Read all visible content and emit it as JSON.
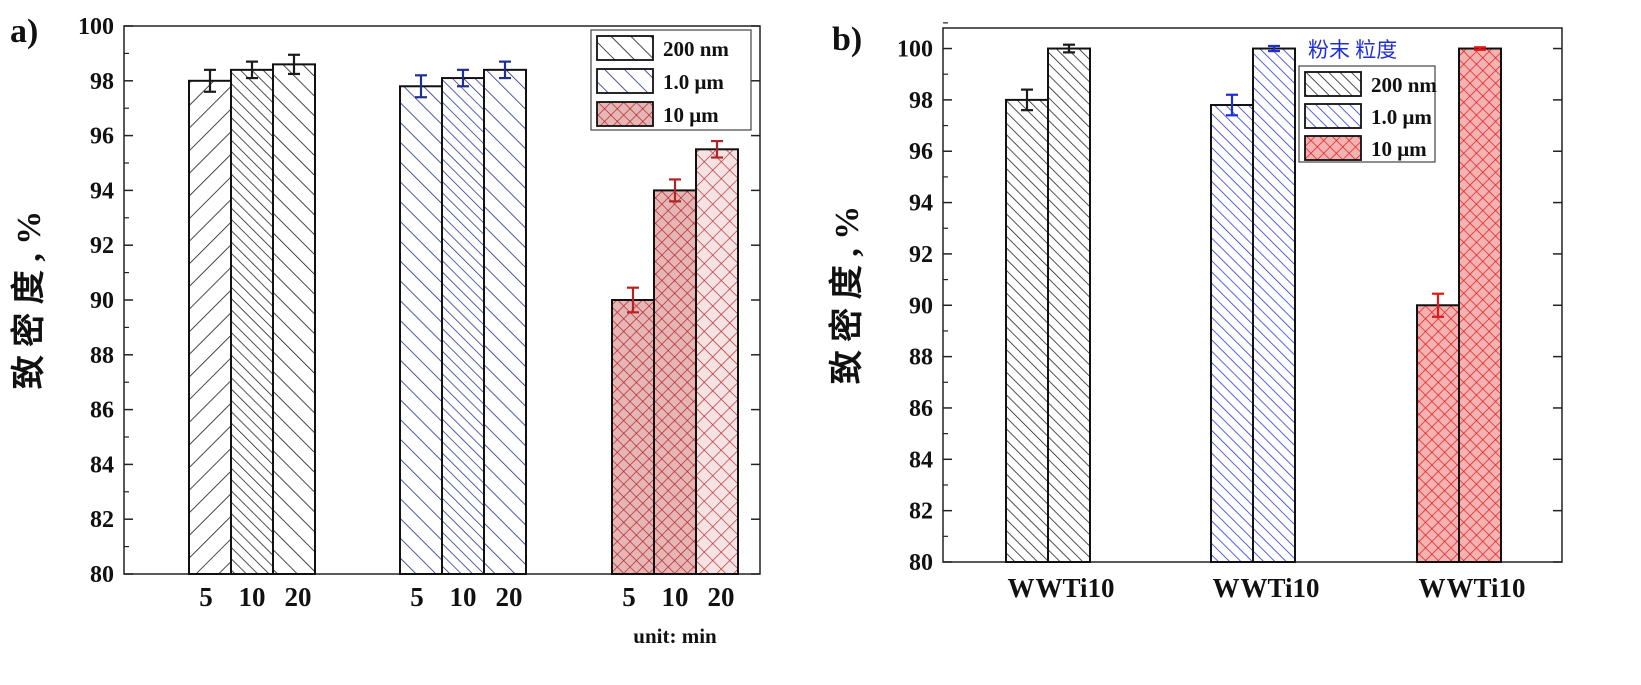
{
  "figure": {
    "panels": [
      {
        "id": "a",
        "label": "a)"
      },
      {
        "id": "b",
        "label": "b)"
      }
    ]
  },
  "colors": {
    "black": "#1a1a1a",
    "blue": "#1f2f8f",
    "red": "#b32424",
    "b_blue": "#1f2fd6",
    "b_red": "#e01818",
    "legend_title": "#1f2fd6"
  },
  "chart_data": [
    {
      "type": "bar",
      "panel": "a)",
      "ylabel": "致 密 度 , %",
      "ylim": [
        80,
        100
      ],
      "yticks": [
        80,
        82,
        84,
        86,
        88,
        90,
        92,
        94,
        96,
        98,
        100
      ],
      "groups": [
        {
          "series": "200 nm",
          "color": "black",
          "categories": [
            "5",
            "10",
            "20"
          ],
          "values": [
            98.0,
            98.4,
            98.6
          ],
          "errors": [
            0.4,
            0.3,
            0.35
          ],
          "patterns": [
            "fwd-wide",
            "back-dense",
            "back-wide"
          ]
        },
        {
          "series": "1.0 μm",
          "color": "blue",
          "categories": [
            "5",
            "10",
            "20"
          ],
          "values": [
            97.8,
            98.1,
            98.4
          ],
          "errors": [
            0.4,
            0.3,
            0.3
          ],
          "patterns": [
            "back-wide",
            "back-dense",
            "back-wide"
          ]
        },
        {
          "series": "10 μm",
          "color": "red",
          "categories": [
            "5",
            "10",
            "20"
          ],
          "values": [
            90.0,
            94.0,
            95.5
          ],
          "errors": [
            0.45,
            0.4,
            0.3
          ],
          "patterns": [
            "cross-dense",
            "cross-dense",
            "cross-wide-light"
          ]
        }
      ],
      "legend": [
        {
          "name": "200 nm",
          "color": "black",
          "pattern": "back-wide"
        },
        {
          "name": "1.0 μm",
          "color": "blue",
          "pattern": "back-wide"
        },
        {
          "name": "10 μm",
          "color": "red",
          "pattern": "cross-dense"
        }
      ],
      "legend_placement": "top-right",
      "annotation": "unit: min"
    },
    {
      "type": "bar",
      "panel": "b)",
      "ylabel": "致 密 度 , %",
      "ylim": [
        80,
        100.8
      ],
      "yticks": [
        80,
        82,
        84,
        86,
        88,
        90,
        92,
        94,
        96,
        98,
        100
      ],
      "groups": [
        {
          "series": "200 nm",
          "color": "black",
          "categories": [
            "W",
            "WTi10"
          ],
          "values": [
            98.0,
            100.0
          ],
          "errors": [
            0.4,
            0.15
          ],
          "patterns": [
            "back-dense",
            "back-dense"
          ]
        },
        {
          "series": "1.0 μm",
          "color": "b_blue",
          "categories": [
            "W",
            "WTi10"
          ],
          "values": [
            97.8,
            100.0
          ],
          "errors": [
            0.4,
            0.1
          ],
          "patterns": [
            "back-dense",
            "back-dense"
          ]
        },
        {
          "series": "10 μm",
          "color": "b_red",
          "categories": [
            "W",
            "WTi10"
          ],
          "values": [
            90.0,
            100.0
          ],
          "errors": [
            0.45,
            0.05
          ],
          "patterns": [
            "cross-dense",
            "cross-dense"
          ]
        }
      ],
      "legend_title": "粉末 粒度",
      "legend": [
        {
          "name": "200 nm",
          "color": "black",
          "pattern": "back-dense"
        },
        {
          "name": "1.0 μm",
          "color": "b_blue",
          "pattern": "back-dense"
        },
        {
          "name": "10 μm",
          "color": "b_red",
          "pattern": "cross-dense"
        }
      ],
      "legend_placement": "top-right"
    }
  ]
}
